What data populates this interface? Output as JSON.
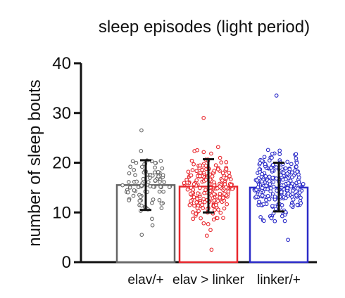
{
  "chart_data": {
    "type": "bar",
    "title": "sleep episodes (light period)",
    "xlabel": "",
    "ylabel": "number of sleep bouts",
    "ylim": [
      0,
      40
    ],
    "yticks": [
      0,
      10,
      20,
      30,
      40
    ],
    "categories": [
      "elav/+",
      "elav > linker",
      "linker/+"
    ],
    "colors": [
      "#666666",
      "#e8262c",
      "#2b2bc8"
    ],
    "values": [
      15.5,
      15.2,
      15.0
    ],
    "sd_low": [
      10.5,
      10.0,
      10.2
    ],
    "sd_high": [
      20.5,
      20.7,
      20.0
    ],
    "point_ranges": [
      {
        "min": 5.5,
        "max": 26.5,
        "n": 95
      },
      {
        "min": 2.5,
        "max": 29.0,
        "n": 210
      },
      {
        "min": 4.5,
        "max": 33.5,
        "n": 260
      }
    ],
    "grid": false,
    "legend": "none"
  }
}
